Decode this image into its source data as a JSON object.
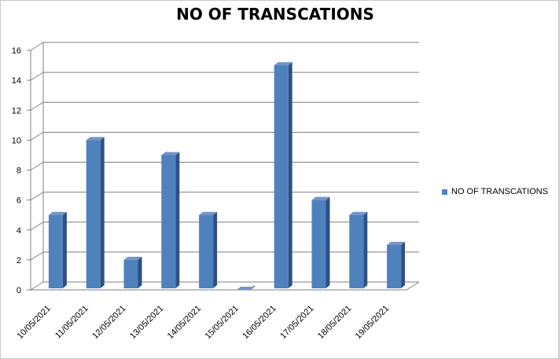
{
  "chart_data": {
    "type": "bar",
    "title": "NO OF TRANSCATIONS",
    "categories": [
      "10/05/2021",
      "11/05/2021",
      "12/05/2021",
      "13/05/2021",
      "14/05/2021",
      "15/05/2021",
      "16/05/2021",
      "17/05/2021",
      "18/05/2021",
      "19/05/2021"
    ],
    "series": [
      {
        "name": "NO OF TRANSCATIONS",
        "values": [
          5,
          10,
          2,
          9,
          5,
          0,
          15,
          6,
          5,
          3
        ]
      }
    ],
    "ylim": [
      0,
      16
    ],
    "yticks": [
      "0",
      "2",
      "4",
      "6",
      "8",
      "10",
      "12",
      "14",
      "16"
    ],
    "grid": true,
    "legend_position": "right",
    "colors": {
      "bar_front": "#4f81bd",
      "bar_side": "#2e5182",
      "bar_top": "#7394c9",
      "grid": "#7f7f7f"
    }
  }
}
